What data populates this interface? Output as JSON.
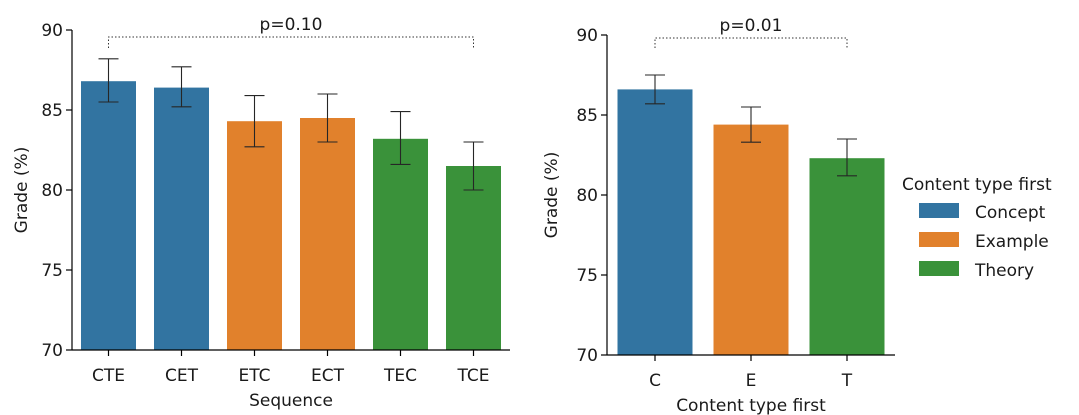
{
  "colors": {
    "Concept": "#3274a1",
    "Example": "#e1812c",
    "Theory": "#3a923a",
    "axis": "#000000",
    "errorbar": "#262626"
  },
  "legend": {
    "title": "Content type first",
    "entries": [
      {
        "label": "Concept",
        "color": "#3274a1"
      },
      {
        "label": "Example",
        "color": "#e1812c"
      },
      {
        "label": "Theory",
        "color": "#3a923a"
      }
    ]
  },
  "chart_data": [
    {
      "type": "bar",
      "xlabel": "Sequence",
      "ylabel": "Grade (%)",
      "ylim": [
        70,
        90
      ],
      "yticks": [
        70,
        75,
        80,
        85,
        90
      ],
      "categories": [
        "CTE",
        "CET",
        "ETC",
        "ECT",
        "TEC",
        "TCE"
      ],
      "values": [
        86.8,
        86.4,
        84.3,
        84.5,
        83.2,
        81.5
      ],
      "err_low": [
        85.5,
        85.2,
        82.7,
        83.0,
        81.6,
        80.0
      ],
      "err_high": [
        88.2,
        87.7,
        85.9,
        86.0,
        84.9,
        83.0
      ],
      "group": [
        "Concept",
        "Concept",
        "Example",
        "Example",
        "Theory",
        "Theory"
      ],
      "annotation": {
        "text": "p=0.10",
        "from": "CTE",
        "to": "TCE"
      }
    },
    {
      "type": "bar",
      "xlabel": "Content type first",
      "ylabel": "Grade (%)",
      "ylim": [
        70,
        90
      ],
      "yticks": [
        70,
        75,
        80,
        85,
        90
      ],
      "categories": [
        "C",
        "E",
        "T"
      ],
      "values": [
        86.6,
        84.4,
        82.3
      ],
      "err_low": [
        85.7,
        83.3,
        81.2
      ],
      "err_high": [
        87.5,
        85.5,
        83.5
      ],
      "group": [
        "Concept",
        "Example",
        "Theory"
      ],
      "annotation": {
        "text": "p=0.01",
        "from": "C",
        "to": "T"
      }
    }
  ]
}
